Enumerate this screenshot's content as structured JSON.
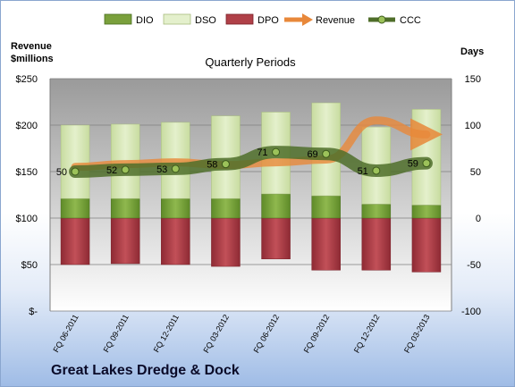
{
  "chart_data": {
    "type": "bar",
    "title": "",
    "subtitle": "Quarterly Periods",
    "company": "Great Lakes Dredge & Dock",
    "left_axis_label": "Revenue\n$millions",
    "right_axis_label": "Days",
    "left_ticks": [
      "$-",
      "$50",
      "$100",
      "$150",
      "$200",
      "$250"
    ],
    "left_ylim": [
      0,
      250
    ],
    "right_ticks": [
      "-100",
      "-50",
      "0",
      "50",
      "100",
      "150"
    ],
    "right_ylim": [
      -100,
      150
    ],
    "categories": [
      "FQ 06-2011",
      "FQ 09-2011",
      "FQ 12-2011",
      "FQ 03-2012",
      "FQ 06-2012",
      "FQ 09-2012",
      "FQ 12-2012",
      "FQ 03-2013"
    ],
    "series": [
      {
        "name": "DIO",
        "axis": "right",
        "color": "#7aa03c",
        "values": [
          21,
          21,
          21,
          21,
          26,
          24,
          15,
          14
        ]
      },
      {
        "name": "DSO",
        "axis": "right",
        "color": "#d6e6b2",
        "values": [
          79,
          80,
          82,
          89,
          88,
          100,
          83,
          103
        ]
      },
      {
        "name": "DPO",
        "axis": "right",
        "color": "#b04048",
        "values": [
          -50,
          -49,
          -50,
          -52,
          -44,
          -56,
          -56,
          -58
        ]
      },
      {
        "name": "Revenue",
        "axis": "left",
        "color": "#e8883a",
        "values": [
          155,
          158,
          160,
          157,
          160,
          163,
          205,
          190
        ]
      },
      {
        "name": "CCC",
        "axis": "right",
        "color": "#4f6e2a",
        "values": [
          50,
          52,
          53,
          58,
          71,
          69,
          51,
          59
        ]
      }
    ],
    "ccc_labels": [
      "50",
      "52",
      "53",
      "58",
      "71",
      "69",
      "51",
      "59"
    ],
    "legend": [
      "DIO",
      "DSO",
      "DPO",
      "Revenue",
      "CCC"
    ],
    "legend_position": "top",
    "grid": true
  }
}
